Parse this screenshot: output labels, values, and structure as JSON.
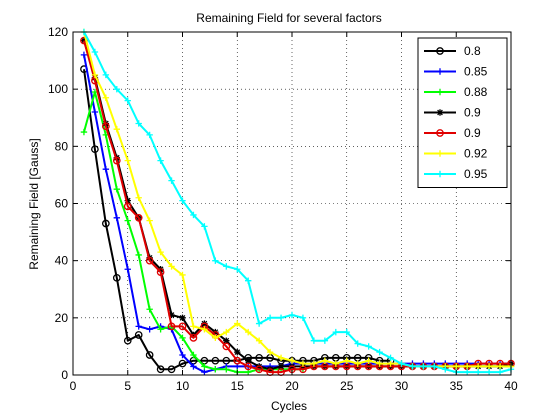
{
  "chart_data": {
    "type": "line",
    "title": "Remaining Field for several factors",
    "xlabel": "Cycles",
    "ylabel": "Remaining Field [Gauss]",
    "xlim": [
      0,
      40
    ],
    "ylim": [
      0,
      120
    ],
    "xticks": [
      0,
      5,
      10,
      15,
      20,
      25,
      30,
      35,
      40
    ],
    "yticks": [
      0,
      20,
      40,
      60,
      80,
      100,
      120
    ],
    "grid": true,
    "legend_position": "top-right",
    "series": [
      {
        "name": "0.8",
        "color": "#000000",
        "marker": "circle",
        "x": [
          1,
          2,
          3,
          4,
          5,
          6,
          7,
          8,
          9,
          10,
          11,
          12,
          13,
          14,
          15,
          16,
          17,
          18,
          19,
          20,
          21,
          22,
          23,
          24,
          25,
          26,
          27,
          28,
          29
        ],
        "y": [
          107,
          79,
          53,
          34,
          12,
          14,
          7,
          2,
          2,
          4,
          5,
          5,
          5,
          5,
          5,
          6,
          6,
          6,
          5,
          5,
          5,
          5,
          6,
          6,
          6,
          6,
          6,
          5,
          5
        ]
      },
      {
        "name": "0.85",
        "color": "#0000ff",
        "marker": "plus",
        "x": [
          1,
          2,
          3,
          4,
          5,
          6,
          7,
          8,
          9,
          10,
          11,
          12,
          13,
          14,
          15,
          16,
          17,
          18,
          19,
          20,
          21,
          22,
          23,
          24,
          25,
          26,
          27,
          28,
          29,
          30,
          31,
          32,
          33,
          34,
          35,
          36,
          37,
          38,
          39,
          40
        ],
        "y": [
          112,
          92,
          72,
          55,
          37,
          17,
          16,
          17,
          16,
          7,
          3,
          1,
          2,
          3,
          3,
          3,
          3,
          3,
          3,
          4,
          4,
          4,
          4,
          4,
          4,
          4,
          4,
          4,
          4,
          4,
          4,
          4,
          4,
          4,
          4,
          4,
          4,
          4,
          4,
          4
        ]
      },
      {
        "name": "0.88",
        "color": "#00ff00",
        "marker": "plus",
        "x": [
          1,
          2,
          3,
          4,
          5,
          6,
          7,
          8,
          9,
          10,
          11,
          12,
          13,
          14,
          15,
          16,
          17,
          18,
          19,
          20,
          21,
          22,
          23,
          24,
          25,
          26,
          27,
          28,
          29,
          30,
          31,
          32,
          33,
          34,
          35,
          36,
          37,
          38,
          39,
          40
        ],
        "y": [
          85,
          99,
          84,
          65,
          54,
          42,
          23,
          16,
          17,
          13,
          7,
          3,
          2,
          2,
          1,
          1,
          2,
          2,
          2,
          2,
          2,
          3,
          3,
          3,
          3,
          3,
          3,
          3,
          3,
          3,
          3,
          3,
          3,
          3,
          3,
          3,
          3,
          3,
          3,
          3
        ]
      },
      {
        "name": "0.9",
        "color": "#000000",
        "marker": "star",
        "x": [
          1,
          2,
          3,
          4,
          5,
          6,
          7,
          8,
          9,
          10,
          11,
          12,
          13,
          14,
          15,
          16,
          17,
          18,
          19,
          20,
          21,
          22,
          23,
          24,
          25,
          26,
          27,
          28,
          29,
          30,
          31,
          32,
          33,
          34,
          35,
          36,
          37,
          38,
          39,
          40
        ],
        "y": [
          117,
          104,
          88,
          76,
          61,
          55,
          41,
          37,
          21,
          20,
          14,
          18,
          15,
          12,
          8,
          5,
          3,
          2,
          3,
          3,
          3,
          3,
          3,
          3,
          3,
          3,
          3,
          3,
          3,
          3,
          3,
          3,
          3,
          3,
          3,
          3,
          3,
          3,
          3,
          4
        ]
      },
      {
        "name": "0.9",
        "color": "#e00000",
        "marker": "circle",
        "x": [
          1,
          2,
          3,
          4,
          5,
          6,
          7,
          8,
          9,
          10,
          11,
          12,
          13,
          14,
          15,
          16,
          17,
          18,
          19,
          20,
          21,
          22,
          23,
          24,
          25,
          26,
          27,
          28,
          29,
          30,
          31,
          32,
          33,
          34,
          35,
          36,
          37,
          38,
          39,
          40
        ],
        "y": [
          117,
          103,
          87,
          75,
          59,
          55,
          40,
          36,
          17,
          17,
          13,
          17,
          14,
          10,
          5,
          3,
          2,
          1,
          1,
          2,
          2,
          3,
          3,
          3,
          3,
          3,
          3,
          3,
          3,
          3,
          3,
          3,
          3,
          3,
          3,
          3,
          4,
          4,
          4,
          4
        ]
      },
      {
        "name": "0.92",
        "color": "#ffff00",
        "marker": "plus",
        "x": [
          1,
          2,
          3,
          4,
          5,
          6,
          7,
          8,
          9,
          10,
          11,
          12,
          13,
          14,
          15,
          16,
          17,
          18,
          19,
          20,
          21,
          22,
          23,
          24,
          25,
          26,
          27,
          28,
          29,
          30,
          31,
          32,
          33,
          34,
          35,
          36,
          37,
          38,
          39,
          40
        ],
        "y": [
          120,
          105,
          97,
          86,
          75,
          62,
          54,
          43,
          38,
          35,
          17,
          16,
          13,
          15,
          18,
          15,
          12,
          8,
          6,
          5,
          4,
          4,
          5,
          4,
          5,
          4,
          5,
          4,
          4,
          4,
          3,
          3,
          3,
          3,
          3,
          3,
          3,
          3,
          3,
          3
        ]
      },
      {
        "name": "0.95",
        "color": "#00ffff",
        "marker": "plus",
        "x": [
          1,
          2,
          3,
          4,
          5,
          6,
          7,
          8,
          9,
          10,
          11,
          12,
          13,
          14,
          15,
          16,
          17,
          18,
          19,
          20,
          21,
          22,
          23,
          24,
          25,
          26,
          27,
          28,
          29,
          30,
          31,
          32,
          33,
          34,
          35,
          36,
          37,
          38,
          39,
          40
        ],
        "y": [
          120,
          113,
          105,
          100,
          96,
          88,
          84,
          75,
          68,
          61,
          56,
          52,
          40,
          38,
          37,
          33,
          18,
          20,
          20,
          21,
          20,
          12,
          12,
          15,
          15,
          11,
          10,
          8,
          6,
          4,
          3,
          3,
          3,
          2,
          1,
          1,
          1,
          1,
          1,
          2
        ]
      }
    ]
  }
}
